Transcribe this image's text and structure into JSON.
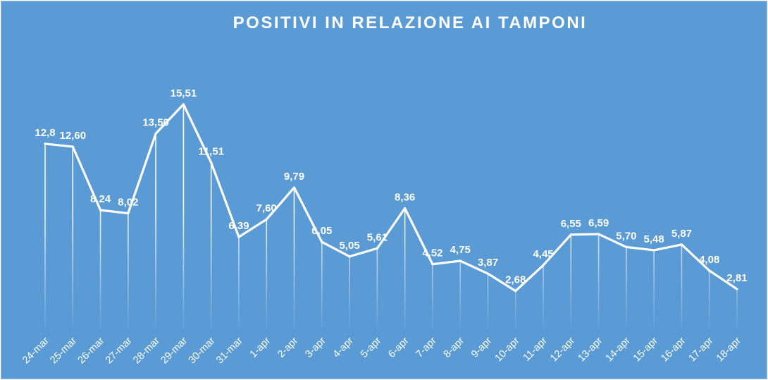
{
  "chart_data": {
    "type": "line",
    "title": "POSITIVI IN RELAZIONE AI TAMPONI",
    "categories": [
      "24-mar",
      "25-mar",
      "26-mar",
      "27-mar",
      "28-mar",
      "29-mar",
      "30-mar",
      "31-mar",
      "1-apr",
      "2-apr",
      "3-apr",
      "4-apr",
      "5-apr",
      "6-apr",
      "7-apr",
      "8-apr",
      "9-apr",
      "10-apr",
      "11-apr",
      "12-apr",
      "13-apr",
      "14-apr",
      "15-apr",
      "16-apr",
      "17-apr",
      "18-apr"
    ],
    "values": [
      12.8,
      12.6,
      8.24,
      8.02,
      13.5,
      15.51,
      11.51,
      6.39,
      7.6,
      9.79,
      6.05,
      5.05,
      5.61,
      8.36,
      4.52,
      4.75,
      3.87,
      2.68,
      4.45,
      6.55,
      6.59,
      5.7,
      5.48,
      5.87,
      4.08,
      2.81
    ],
    "data_labels": [
      "12,8",
      "12,60",
      "8,24",
      "8,02",
      "13,50",
      "15,51",
      "11,51",
      "6,39",
      "7,60",
      "9,79",
      "6,05",
      "5,05",
      "5,61",
      "8,36",
      "4,52",
      "4,75",
      "3,87",
      "2,68",
      "4,45",
      "6,55",
      "6,59",
      "5,70",
      "5,48",
      "5,87",
      "4,08",
      "2,81"
    ],
    "xlabel": "",
    "ylabel": "",
    "ylim": [
      0,
      17
    ],
    "grid": false,
    "legend": "none",
    "drop_lines": true,
    "colors": {
      "background": "#5b9bd5",
      "line": "#ffffff",
      "text": "#ffffff"
    }
  }
}
